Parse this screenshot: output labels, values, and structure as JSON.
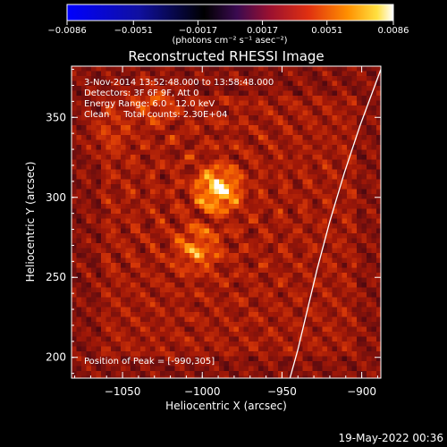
{
  "chart_data": {
    "type": "heatmap",
    "title": "Reconstructed RHESSI Image",
    "xlabel": "Heliocentric X (arcsec)",
    "ylabel": "Heliocentric Y (arcsec)",
    "xlim": [
      -1082,
      -888
    ],
    "ylim": [
      187,
      382
    ],
    "xticks": [
      -1050,
      -1000,
      -950,
      -900
    ],
    "yticks": [
      200,
      250,
      300,
      350
    ],
    "xtick_labels": [
      "−1050",
      "−1000",
      "−950",
      "−900"
    ],
    "ytick_labels": [
      "200",
      "250",
      "300",
      "350"
    ],
    "colorbar": {
      "range": [
        -0.0086,
        0.0086
      ],
      "ticks": [
        -0.0086,
        -0.0051,
        -0.0017,
        0.0017,
        0.0051,
        0.0086
      ],
      "tick_labels": [
        "−0.0086",
        "−0.0051",
        "−0.0017",
        "0.0017",
        "0.0051",
        "0.0086"
      ],
      "units": "(photons cm⁻² s⁻¹ asec⁻²)",
      "colors": [
        "#0000ff",
        "#000000",
        "#2a0a4a",
        "#8a1a2a",
        "#d02010",
        "#ff6a00",
        "#ffb000",
        "#ffff40",
        "#ffffff"
      ]
    },
    "annotations": [
      "3-Nov-2014 13:52:48.000 to 13:58:48.000",
      "Detectors: 3F 6F 9F, Att 0",
      "Energy Range: 6.0 - 12.0 keV",
      "Clean     Total counts: 2.30E+04"
    ],
    "peak_label": "Position of Peak = [-990,305]",
    "peaks": [
      {
        "x": -990,
        "y": 305,
        "intensity": 1.0
      },
      {
        "x": -1003,
        "y": 268,
        "intensity": 0.6
      },
      {
        "x": -1030,
        "y": 360,
        "intensity": 0.35
      },
      {
        "x": -1060,
        "y": 340,
        "intensity": 0.25
      }
    ],
    "limb_curve": [
      {
        "x": -945,
        "y": 187
      },
      {
        "x": -940,
        "y": 205
      },
      {
        "x": -934,
        "y": 230
      },
      {
        "x": -928,
        "y": 255
      },
      {
        "x": -920,
        "y": 285
      },
      {
        "x": -911,
        "y": 315
      },
      {
        "x": -901,
        "y": 345
      },
      {
        "x": -888,
        "y": 380
      }
    ]
  },
  "footer": {
    "timestamp": "19-May-2022 00:36"
  }
}
